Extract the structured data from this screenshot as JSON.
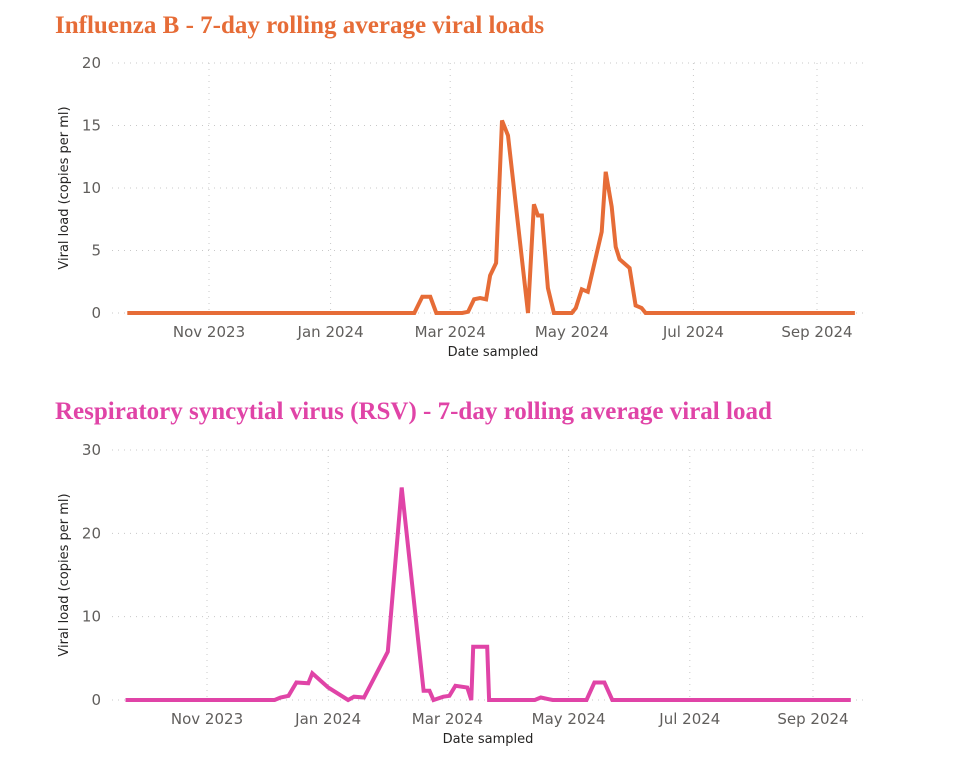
{
  "chart_data": [
    {
      "type": "line",
      "title": "Influenza B - 7-day rolling average viral loads",
      "title_color": "#e66c37",
      "xlabel": "Date sampled",
      "ylabel": "Viral load (copies per ml)",
      "ylim": [
        0,
        20
      ],
      "yticks": [
        0,
        5,
        10,
        15,
        20
      ],
      "xtick_labels": [
        "Nov 2023",
        "Jan 2024",
        "Mar 2024",
        "May 2024",
        "Jul 2024",
        "Sep 2024"
      ],
      "xtick_dates": [
        "2023-11-01",
        "2024-01-01",
        "2024-03-01",
        "2024-05-01",
        "2024-07-01",
        "2024-09-01"
      ],
      "grid": true,
      "series": [
        {
          "name": "Influenza B",
          "color": "#e66c37",
          "points": [
            [
              "2023-09-21",
              0
            ],
            [
              "2024-02-12",
              0
            ],
            [
              "2024-02-16",
              1.3
            ],
            [
              "2024-02-20",
              1.3
            ],
            [
              "2024-02-23",
              0
            ],
            [
              "2024-03-07",
              0
            ],
            [
              "2024-03-10",
              0.1
            ],
            [
              "2024-03-13",
              1.1
            ],
            [
              "2024-03-16",
              1.2
            ],
            [
              "2024-03-19",
              1.1
            ],
            [
              "2024-03-21",
              3.0
            ],
            [
              "2024-03-24",
              4.0
            ],
            [
              "2024-03-27",
              15.4
            ],
            [
              "2024-03-30",
              14.2
            ],
            [
              "2024-04-09",
              0
            ],
            [
              "2024-04-12",
              8.7
            ],
            [
              "2024-04-14",
              7.8
            ],
            [
              "2024-04-16",
              7.8
            ],
            [
              "2024-04-19",
              2.0
            ],
            [
              "2024-04-22",
              0
            ],
            [
              "2024-05-01",
              0
            ],
            [
              "2024-05-03",
              0.4
            ],
            [
              "2024-05-06",
              1.9
            ],
            [
              "2024-05-09",
              1.7
            ],
            [
              "2024-05-16",
              6.5
            ],
            [
              "2024-05-18",
              11.3
            ],
            [
              "2024-05-21",
              8.5
            ],
            [
              "2024-05-23",
              5.3
            ],
            [
              "2024-05-25",
              4.3
            ],
            [
              "2024-05-30",
              3.6
            ],
            [
              "2024-06-02",
              0.6
            ],
            [
              "2024-06-05",
              0.4
            ],
            [
              "2024-06-07",
              0
            ],
            [
              "2024-09-20",
              0
            ]
          ]
        }
      ]
    },
    {
      "type": "line",
      "title": "Respiratory syncytial virus (RSV) - 7-day rolling average viral load",
      "title_color": "#e044a7",
      "xlabel": "Date sampled",
      "ylabel": "Viral load (copies per ml)",
      "ylim": [
        0,
        30
      ],
      "yticks": [
        0,
        10,
        20,
        30
      ],
      "xtick_labels": [
        "Nov 2023",
        "Jan 2024",
        "Mar 2024",
        "May 2024",
        "Jul 2024",
        "Sep 2024"
      ],
      "xtick_dates": [
        "2023-11-01",
        "2024-01-01",
        "2024-03-01",
        "2024-05-01",
        "2024-07-01",
        "2024-09-01"
      ],
      "grid": true,
      "series": [
        {
          "name": "RSV",
          "color": "#e044a7",
          "points": [
            [
              "2023-09-21",
              0
            ],
            [
              "2023-12-05",
              0
            ],
            [
              "2023-12-08",
              0.3
            ],
            [
              "2023-12-12",
              0.5
            ],
            [
              "2023-12-16",
              2.1
            ],
            [
              "2023-12-22",
              2.0
            ],
            [
              "2023-12-24",
              3.2
            ],
            [
              "2024-01-01",
              1.5
            ],
            [
              "2024-01-11",
              0
            ],
            [
              "2024-01-14",
              0.4
            ],
            [
              "2024-01-19",
              0.3
            ],
            [
              "2024-01-31",
              5.8
            ],
            [
              "2024-02-07",
              25.5
            ],
            [
              "2024-02-18",
              1.1
            ],
            [
              "2024-02-21",
              1.1
            ],
            [
              "2024-02-23",
              0
            ],
            [
              "2024-02-28",
              0.4
            ],
            [
              "2024-03-02",
              0.5
            ],
            [
              "2024-03-05",
              1.7
            ],
            [
              "2024-03-11",
              1.5
            ],
            [
              "2024-03-13",
              0
            ],
            [
              "2024-03-14",
              6.4
            ],
            [
              "2024-03-21",
              6.4
            ],
            [
              "2024-03-22",
              0
            ],
            [
              "2024-04-14",
              0
            ],
            [
              "2024-04-17",
              0.3
            ],
            [
              "2024-04-21",
              0.1
            ],
            [
              "2024-04-23",
              0
            ],
            [
              "2024-05-10",
              0
            ],
            [
              "2024-05-14",
              2.1
            ],
            [
              "2024-05-19",
              2.1
            ],
            [
              "2024-05-23",
              0
            ],
            [
              "2024-09-20",
              0
            ]
          ]
        }
      ]
    }
  ]
}
